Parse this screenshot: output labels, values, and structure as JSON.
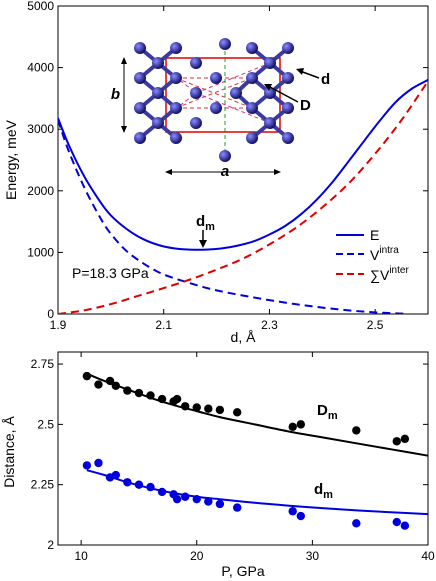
{
  "chart_data": [
    {
      "type": "line",
      "xlabel": "d, Å",
      "ylabel": "Energy, meV",
      "xlim": [
        1.9,
        2.6
      ],
      "ylim": [
        0,
        5000
      ],
      "xticks": [
        1.9,
        2.1,
        2.3,
        2.5
      ],
      "xtick_labels": [
        "1.9",
        "2.1",
        "2.3",
        "2.5"
      ],
      "yticks": [
        0,
        1000,
        2000,
        3000,
        4000,
        5000
      ],
      "ytick_labels": [
        "0",
        "1000",
        "2000",
        "3000",
        "4000",
        "5000"
      ],
      "series": [
        {
          "name": "E",
          "color": "#0000dd",
          "dash": "solid",
          "x": [
            1.9,
            1.92,
            1.95,
            1.98,
            2.0,
            2.03,
            2.06,
            2.09,
            2.12,
            2.15,
            2.18,
            2.21,
            2.24,
            2.27,
            2.3,
            2.33,
            2.36,
            2.39,
            2.42,
            2.45,
            2.48,
            2.51,
            2.54,
            2.57,
            2.6
          ],
          "y": [
            3180,
            2750,
            2230,
            1820,
            1600,
            1380,
            1220,
            1120,
            1065,
            1045,
            1045,
            1065,
            1110,
            1180,
            1290,
            1430,
            1620,
            1860,
            2150,
            2480,
            2820,
            3150,
            3450,
            3660,
            3800
          ]
        },
        {
          "name": "V",
          "name_sup": "intra",
          "color": "#0000dd",
          "dash": "dashed",
          "x": [
            1.9,
            1.92,
            1.95,
            1.98,
            2.0,
            2.03,
            2.06,
            2.09,
            2.12,
            2.15,
            2.18,
            2.21,
            2.24,
            2.27,
            2.3,
            2.33,
            2.36,
            2.39,
            2.42,
            2.45,
            2.48,
            2.51,
            2.54,
            2.56
          ],
          "y": [
            3150,
            2650,
            2050,
            1560,
            1300,
            1020,
            830,
            680,
            580,
            500,
            425,
            365,
            315,
            270,
            225,
            185,
            148,
            115,
            85,
            58,
            38,
            22,
            10,
            5
          ]
        },
        {
          "name": "∑V",
          "name_sup": "inter",
          "color": "#dd0000",
          "dash": "dashed",
          "x": [
            1.9,
            1.95,
            2.0,
            2.05,
            2.1,
            2.15,
            2.2,
            2.25,
            2.3,
            2.35,
            2.4,
            2.45,
            2.5,
            2.55,
            2.6
          ],
          "y": [
            0,
            60,
            160,
            290,
            420,
            560,
            720,
            900,
            1130,
            1400,
            1730,
            2120,
            2600,
            3150,
            3780
          ]
        }
      ],
      "annotations": {
        "minimum_label": "d",
        "minimum_sub": "m",
        "minimum_x": 2.17,
        "minimum_y": 1045,
        "pressure": "P=18.3 GPa"
      },
      "inset": {
        "labels": {
          "a": "a",
          "b": "b",
          "d": "d",
          "D": "D"
        }
      },
      "legend_position": "right-center"
    },
    {
      "type": "scatter",
      "xlabel": "P, GPa",
      "ylabel": "Distance, Å",
      "xlim": [
        8,
        40
      ],
      "ylim": [
        2.0,
        2.8
      ],
      "xticks": [
        10,
        20,
        30,
        40
      ],
      "xtick_labels": [
        "10",
        "20",
        "30",
        "40"
      ],
      "yticks": [
        2.0,
        2.25,
        2.5,
        2.75
      ],
      "ytick_labels": [
        "2",
        "2.25",
        "2.5",
        "2.75"
      ],
      "series": [
        {
          "name": "D",
          "name_sub": "m",
          "color": "#000000",
          "points": {
            "x": [
              10.5,
              11.5,
              12.5,
              13,
              14,
              15,
              16,
              17,
              18,
              18.3,
              19,
              20,
              21,
              22,
              23.5,
              28.3,
              29,
              33.8,
              37.3,
              38
            ],
            "y": [
              2.7,
              2.665,
              2.68,
              2.66,
              2.64,
              2.63,
              2.62,
              2.605,
              2.595,
              2.605,
              2.575,
              2.57,
              2.565,
              2.56,
              2.55,
              2.49,
              2.5,
              2.475,
              2.43,
              2.44
            ]
          },
          "fit": {
            "x": [
              10.5,
              12,
              14,
              16,
              18,
              20,
              22,
              25,
              28,
              31,
              34,
              37,
              40
            ],
            "y": [
              2.71,
              2.68,
              2.645,
              2.61,
              2.58,
              2.555,
              2.53,
              2.5,
              2.47,
              2.445,
              2.42,
              2.395,
              2.37
            ]
          }
        },
        {
          "name": "d",
          "name_sub": "m",
          "color": "#0000dd",
          "points": {
            "x": [
              10.5,
              11.5,
              12.5,
              13,
              14,
              15,
              16,
              17,
              18,
              18.3,
              19,
              20,
              21,
              22,
              23.5,
              28.3,
              29,
              33.8,
              37.3,
              38
            ],
            "y": [
              2.33,
              2.34,
              2.28,
              2.29,
              2.26,
              2.25,
              2.24,
              2.22,
              2.21,
              2.19,
              2.2,
              2.19,
              2.18,
              2.17,
              2.155,
              2.14,
              2.12,
              2.09,
              2.095,
              2.08
            ]
          },
          "fit": {
            "x": [
              10.5,
              12,
              14,
              16,
              18,
              20,
              22,
              25,
              28,
              31,
              34,
              37,
              40
            ],
            "y": [
              2.31,
              2.29,
              2.26,
              2.235,
              2.215,
              2.2,
              2.19,
              2.175,
              2.163,
              2.152,
              2.143,
              2.135,
              2.128
            ]
          }
        }
      ]
    }
  ]
}
